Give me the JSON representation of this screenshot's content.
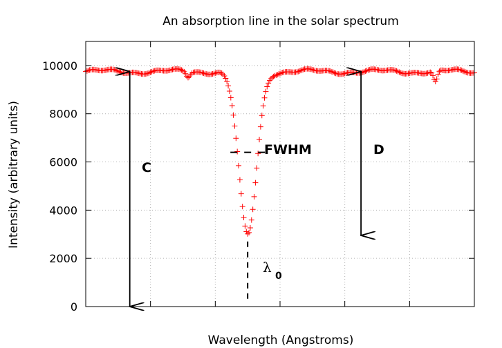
{
  "chart_data": {
    "type": "scatter",
    "title": "An absorption line in the solar spectrum",
    "xlabel": "Wavelength (Angstroms)",
    "ylabel": "Intensity (arbitrary units)",
    "xlim": [
      0,
      600
    ],
    "ylim": [
      0,
      11000
    ],
    "x_ticks": [
      100,
      200,
      300,
      400,
      500
    ],
    "y_ticks": [
      0,
      2000,
      4000,
      6000,
      8000,
      10000
    ],
    "y_tick_labels": [
      "0",
      "2000",
      "4000",
      "6000",
      "8000",
      "10000"
    ],
    "grid": true,
    "series": [
      {
        "marker": "plus",
        "color": "#ff0000",
        "continuum": 9750,
        "line_center": 250,
        "line_depth": 6800,
        "line_fwhm": 32,
        "x_step": 2,
        "x_range": [
          0,
          600
        ],
        "secondary_dips": [
          {
            "x": 158,
            "depth": 220,
            "width": 3
          },
          {
            "x": 540,
            "depth": 480,
            "width": 3
          },
          {
            "x": 600,
            "depth": 0,
            "width": 1
          }
        ]
      }
    ],
    "annotations": {
      "c_label": "C",
      "d_label": "D",
      "fwhm_label": "FWHM",
      "lambda_symbol": "λ",
      "lambda_subscript": "0",
      "arrow_c": {
        "x": 68,
        "y_top": 9750,
        "y_bottom": 0
      },
      "arrow_d": {
        "x": 425,
        "y_top": 9750,
        "y_bottom": 2950
      },
      "fwhm_y": 6400,
      "fwhm_x_left": 234,
      "fwhm_x_right": 266,
      "center_dash": {
        "x": 250,
        "y_top": 2700,
        "y_bottom": 250
      }
    }
  }
}
